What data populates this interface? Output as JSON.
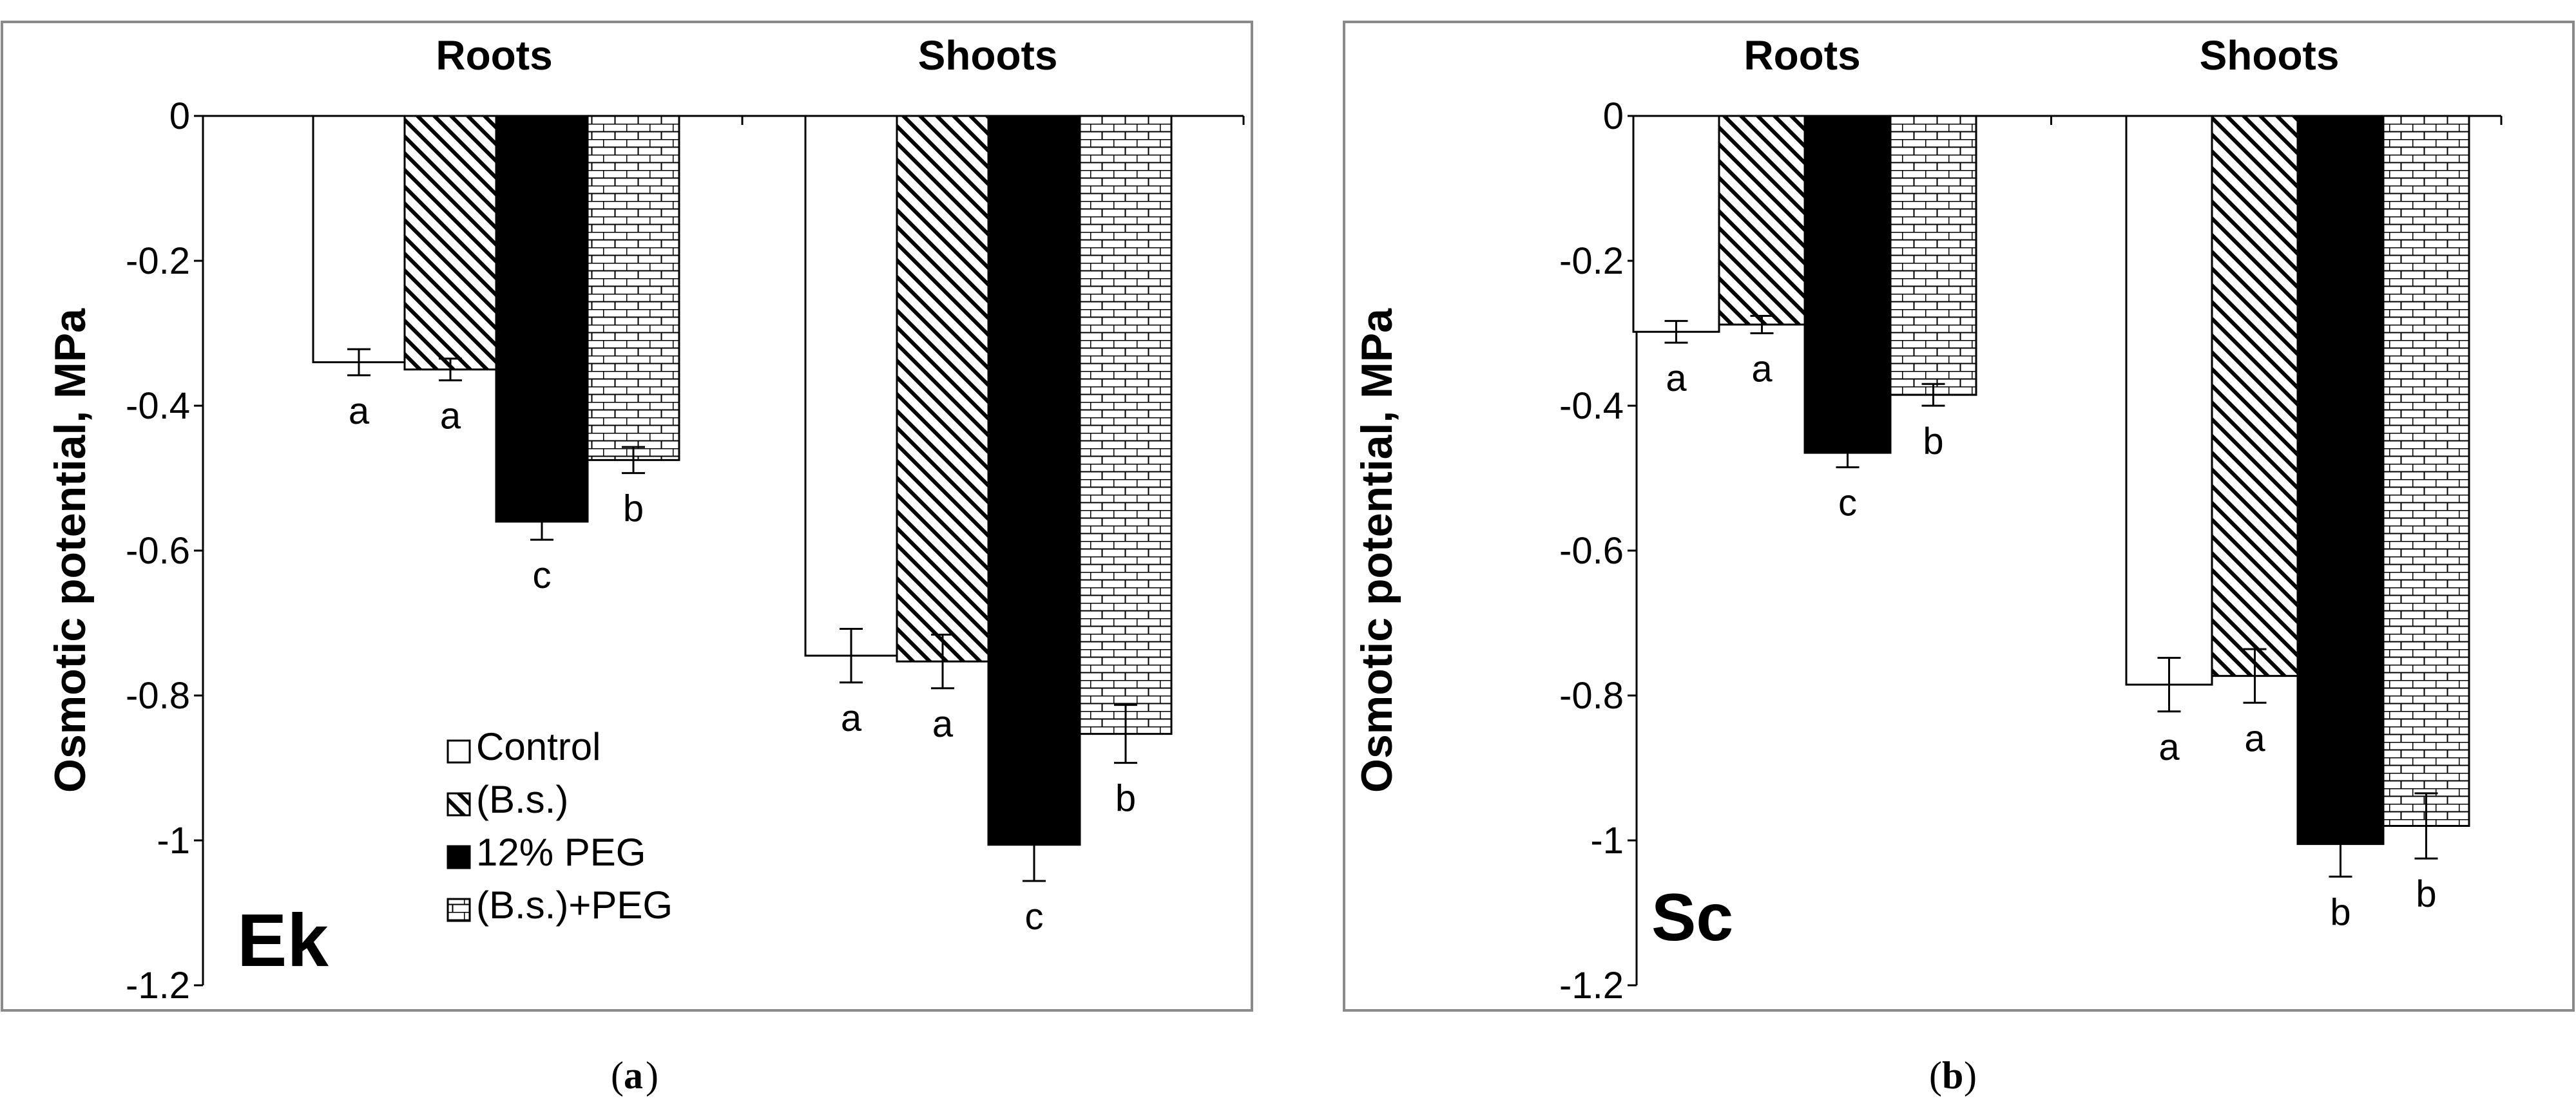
{
  "chart_data": [
    {
      "type": "bar",
      "panel_label": "Ek",
      "caption_letter": "a",
      "ylabel": "Osmotic potential, MPa",
      "ylim": [
        -1.2,
        0
      ],
      "yticks": [
        0,
        -0.2,
        -0.4,
        -0.6,
        -0.8,
        -1,
        -1.2
      ],
      "ytick_labels": [
        "0",
        "-0.2",
        "-0.4",
        "-0.6",
        "-0.8",
        "-1",
        "-1.2"
      ],
      "groups": [
        "Roots",
        "Shoots"
      ],
      "legend": {
        "position": "bottom-left",
        "entries": [
          "Control",
          "(B.s.)",
          "12% PEG",
          "(B.s.)+PEG"
        ]
      },
      "series": [
        {
          "name": "Control",
          "pattern": "white",
          "values": [
            -0.34,
            -0.745
          ],
          "errors": [
            0.018,
            0.037
          ],
          "letters": [
            "a",
            "a"
          ]
        },
        {
          "name": "(B.s.)",
          "pattern": "diagonal",
          "values": [
            -0.35,
            -0.753
          ],
          "errors": [
            0.015,
            0.037
          ],
          "letters": [
            "a",
            "a"
          ]
        },
        {
          "name": "12% PEG",
          "pattern": "black",
          "values": [
            -0.56,
            -1.006
          ],
          "errors": [
            0.025,
            0.05
          ],
          "letters": [
            "c",
            "c"
          ]
        },
        {
          "name": "(B.s.)+PEG",
          "pattern": "brick",
          "values": [
            -0.475,
            -0.853
          ],
          "errors": [
            0.018,
            0.04
          ],
          "letters": [
            "b",
            "b"
          ]
        }
      ]
    },
    {
      "type": "bar",
      "panel_label": "Sc",
      "caption_letter": "b",
      "ylabel": "Osmotic potential, MPa",
      "ylim": [
        -1.2,
        0
      ],
      "yticks": [
        0,
        -0.2,
        -0.4,
        -0.6,
        -0.8,
        -1,
        -1.2
      ],
      "ytick_labels": [
        "0",
        "-0.2",
        "-0.4",
        "-0.6",
        "-0.8",
        "-1",
        "-1.2"
      ],
      "groups": [
        "Roots",
        "Shoots"
      ],
      "legend": null,
      "series": [
        {
          "name": "Control",
          "pattern": "white",
          "values": [
            -0.298,
            -0.785
          ],
          "errors": [
            0.015,
            0.037
          ],
          "letters": [
            "a",
            "a"
          ]
        },
        {
          "name": "(B.s.)",
          "pattern": "diagonal",
          "values": [
            -0.288,
            -0.773
          ],
          "errors": [
            0.012,
            0.037
          ],
          "letters": [
            "a",
            "a"
          ]
        },
        {
          "name": "12% PEG",
          "pattern": "black",
          "values": [
            -0.465,
            -1.005
          ],
          "errors": [
            0.02,
            0.045
          ],
          "letters": [
            "c",
            "b"
          ]
        },
        {
          "name": "(B.s.)+PEG",
          "pattern": "brick",
          "values": [
            -0.385,
            -0.98
          ],
          "errors": [
            0.015,
            0.045
          ],
          "letters": [
            "b",
            "b"
          ]
        }
      ]
    }
  ]
}
